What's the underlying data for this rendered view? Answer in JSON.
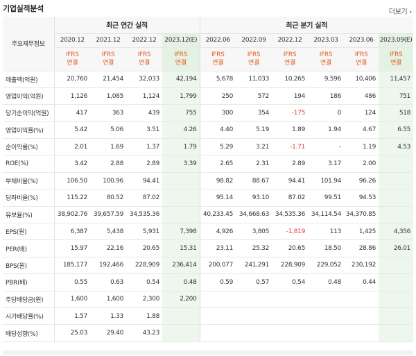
{
  "header": {
    "title": "기업실적분석",
    "more": "더보기"
  },
  "table": {
    "label_col": "주요재무정보",
    "annual_group": "최근 연간 실적",
    "quarter_group": "최근 분기 실적",
    "periods": [
      "2020.12",
      "2021.12",
      "2022.12",
      "2023.12(E)",
      "2022.06",
      "2022.09",
      "2022.12",
      "2023.03",
      "2023.06",
      "2023.09(E)"
    ],
    "ifrs_top": "IFRS",
    "ifrs_bottom": "연결",
    "rows": [
      {
        "label": "매출액(억원)",
        "values": [
          "20,760",
          "21,454",
          "32,033",
          "42,194",
          "5,678",
          "11,033",
          "10,265",
          "9,596",
          "10,406",
          "11,457"
        ]
      },
      {
        "label": "영업이익(억원)",
        "values": [
          "1,126",
          "1,085",
          "1,124",
          "1,799",
          "250",
          "572",
          "194",
          "186",
          "486",
          "751"
        ]
      },
      {
        "label": "당기순이익(억원)",
        "values": [
          "417",
          "363",
          "439",
          "755",
          "300",
          "354",
          "-175",
          "0",
          "124",
          "518"
        ]
      },
      {
        "label": "영업이익률(%)",
        "values": [
          "5.42",
          "5.06",
          "3.51",
          "4.26",
          "4.40",
          "5.19",
          "1.89",
          "1.94",
          "4.67",
          "6.55"
        ]
      },
      {
        "label": "순이익률(%)",
        "values": [
          "2.01",
          "1.69",
          "1.37",
          "1.79",
          "5.29",
          "3.21",
          "-1.71",
          "-",
          "1.19",
          "4.53"
        ]
      },
      {
        "label": "ROE(%)",
        "values": [
          "3.42",
          "2.88",
          "2.89",
          "3.39",
          "2.65",
          "2.31",
          "2.89",
          "3.17",
          "2.00",
          ""
        ]
      },
      {
        "label": "부채비율(%)",
        "values": [
          "106.50",
          "100.96",
          "94.41",
          "",
          "98.82",
          "88.67",
          "94.41",
          "101.94",
          "96.26",
          ""
        ]
      },
      {
        "label": "당좌비율(%)",
        "values": [
          "115.22",
          "80.52",
          "87.02",
          "",
          "95.14",
          "93.10",
          "87.02",
          "99.51",
          "94.53",
          ""
        ]
      },
      {
        "label": "유보율(%)",
        "values": [
          "38,902.76",
          "39,657.59",
          "34,535.36",
          "",
          "40,233.45",
          "34,668.63",
          "34,535.36",
          "34,114.54",
          "34,370.85",
          ""
        ]
      },
      {
        "label": "EPS(원)",
        "values": [
          "6,387",
          "5,438",
          "5,931",
          "7,398",
          "4,926",
          "3,805",
          "-1,819",
          "113",
          "1,425",
          "4,356"
        ]
      },
      {
        "label": "PER(배)",
        "values": [
          "15.97",
          "22.16",
          "20.65",
          "15.31",
          "23.11",
          "25.32",
          "20.65",
          "18.50",
          "28.86",
          "26.01"
        ]
      },
      {
        "label": "BPS(원)",
        "values": [
          "185,177",
          "192,466",
          "228,909",
          "236,414",
          "200,077",
          "241,291",
          "228,909",
          "229,052",
          "230,192",
          ""
        ]
      },
      {
        "label": "PBR(배)",
        "values": [
          "0.55",
          "0.63",
          "0.54",
          "0.48",
          "0.59",
          "0.57",
          "0.54",
          "0.48",
          "0.44",
          ""
        ]
      },
      {
        "label": "주당배당금(원)",
        "values": [
          "1,600",
          "1,600",
          "2,300",
          "2,200",
          "",
          "",
          "",
          "",
          "",
          ""
        ]
      },
      {
        "label": "시가배당률(%)",
        "values": [
          "1.57",
          "1.33",
          "1.88",
          "",
          "",
          "",
          "",
          "",
          "",
          ""
        ]
      },
      {
        "label": "배당성향(%)",
        "values": [
          "25.03",
          "29.40",
          "43.23",
          "",
          "",
          "",
          "",
          "",
          "",
          ""
        ]
      }
    ]
  }
}
